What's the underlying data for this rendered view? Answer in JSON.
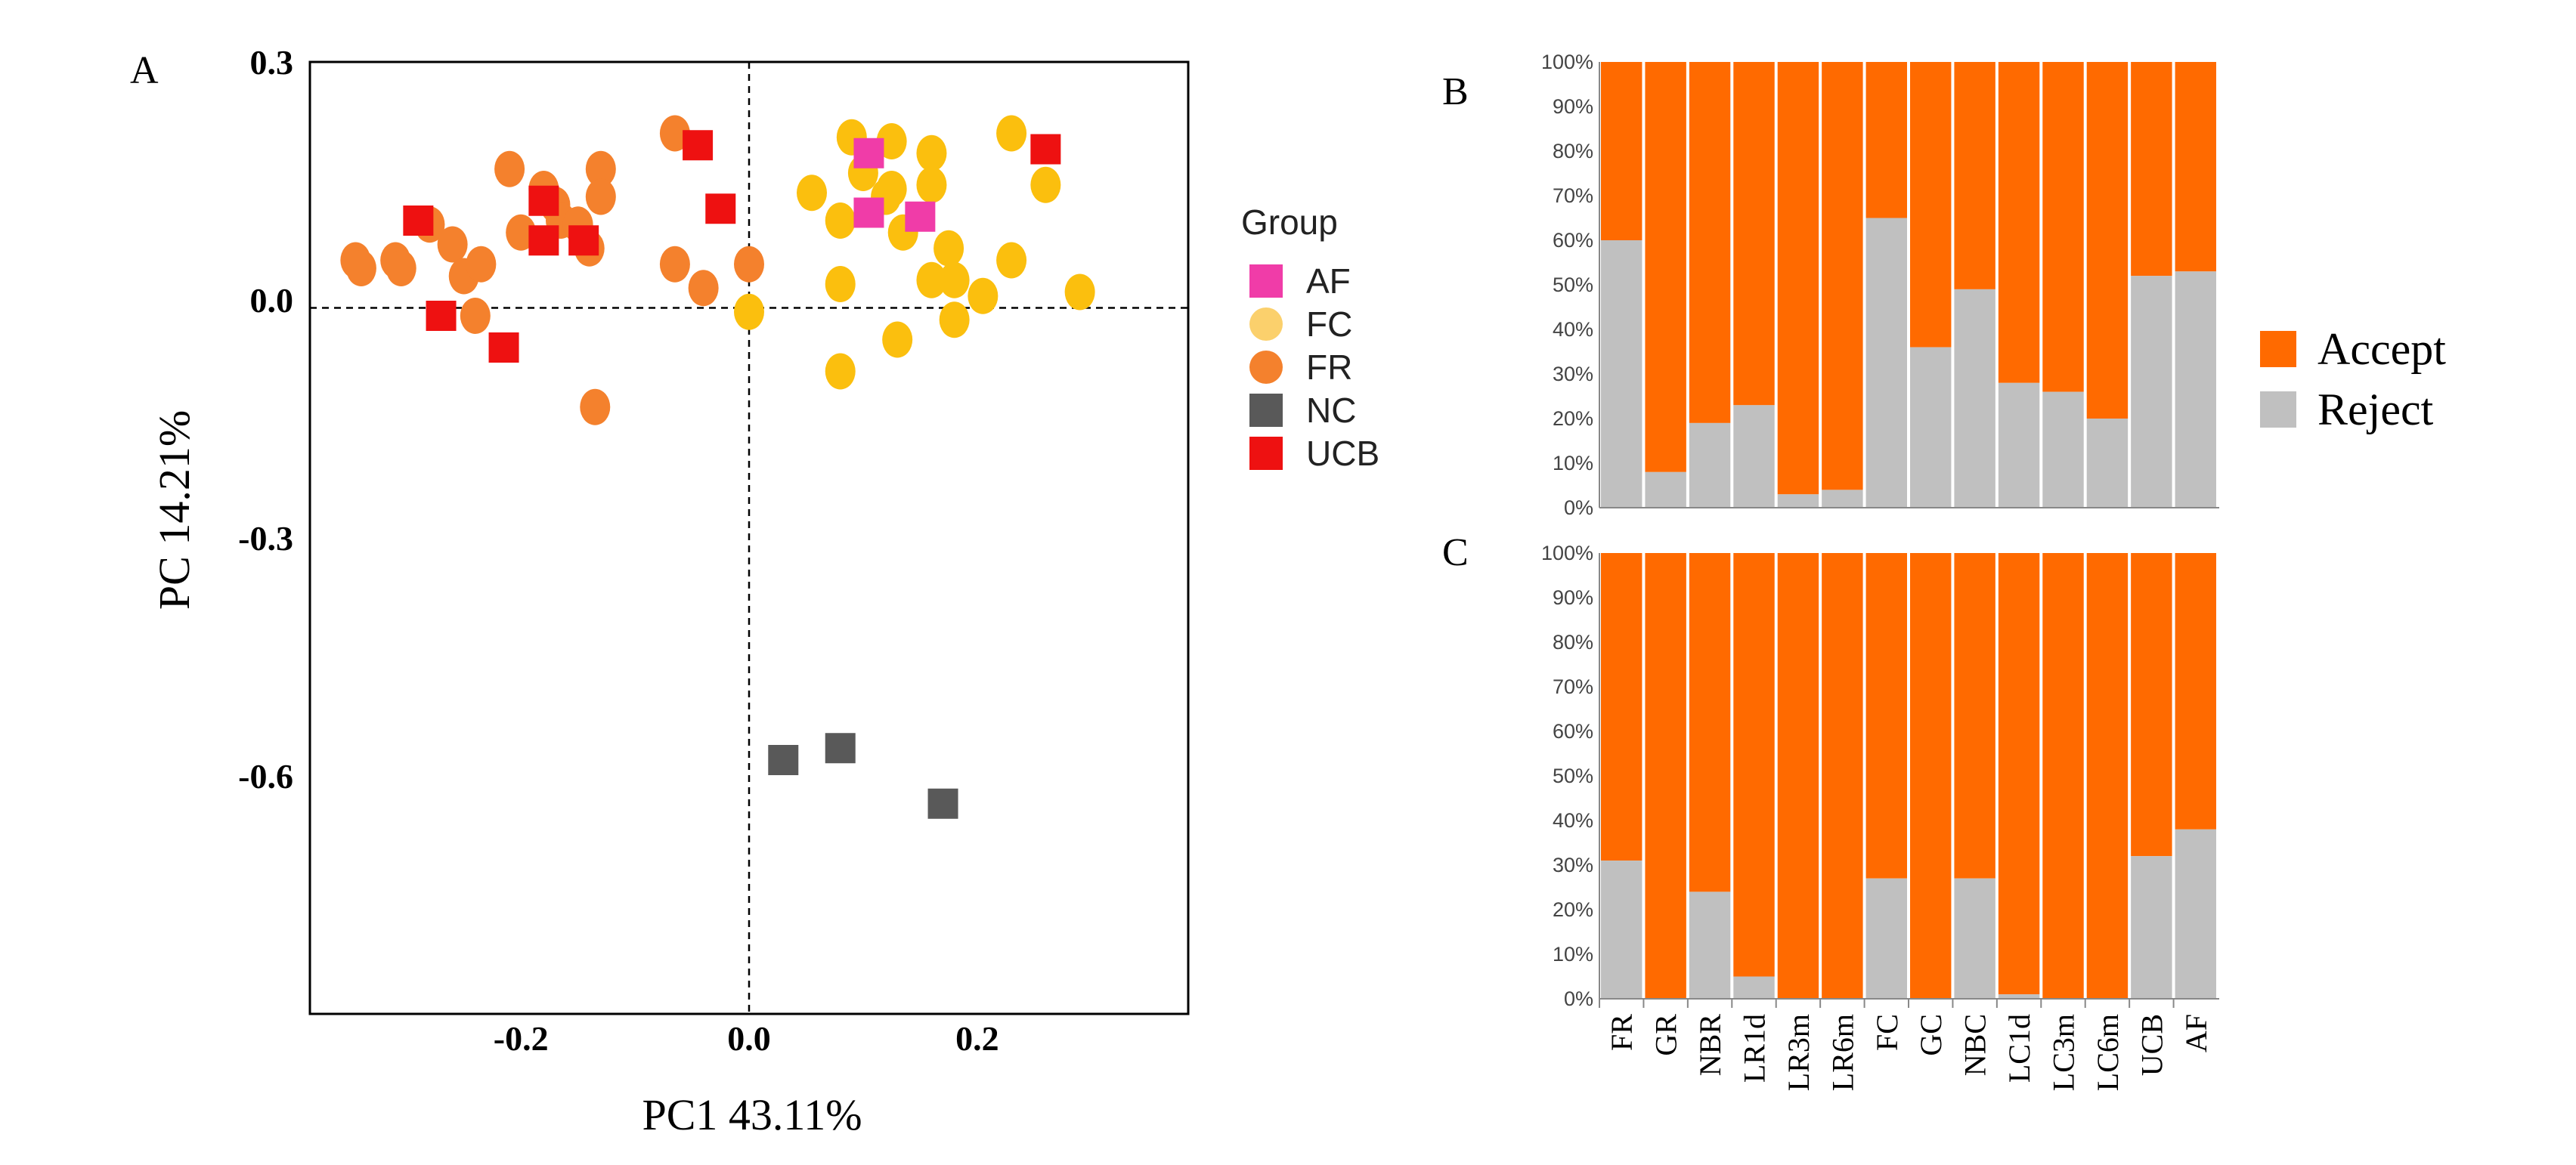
{
  "chart_data": [
    {
      "panel": "A",
      "type": "scatter",
      "xlabel": "PC1 43.11%",
      "ylabel": "PC 14.21%",
      "xlim": [
        -0.385,
        0.385
      ],
      "ylim": [
        -0.9,
        0.3
      ],
      "xticks": [
        -0.2,
        0.0,
        0.2
      ],
      "xtick_labels": [
        "-0.2",
        "0.0",
        "0.2"
      ],
      "yticks": [
        0.3,
        0.0,
        -0.3,
        -0.6
      ],
      "ytick_labels": [
        "0.3",
        "0.0",
        "-0.3",
        "-0.6"
      ],
      "reference_lines": {
        "x": 0.0,
        "y": -0.01,
        "style": "dashed"
      },
      "legend": {
        "title": "Group",
        "position": "right",
        "entries": [
          {
            "label": "AF",
            "marker": "square",
            "color": "#f03ca8"
          },
          {
            "label": "FC",
            "marker": "circle",
            "color": "#fbd06c"
          },
          {
            "label": "FR",
            "marker": "circle",
            "color": "#f4812d"
          },
          {
            "label": "NC",
            "marker": "square",
            "color": "#595959"
          },
          {
            "label": "UCB",
            "marker": "square",
            "color": "#ee1111"
          }
        ]
      },
      "series": [
        {
          "name": "FR",
          "marker": "ellipse",
          "color": "#f4812d",
          "points": [
            [
              -0.345,
              0.05
            ],
            [
              -0.34,
              0.04
            ],
            [
              -0.31,
              0.05
            ],
            [
              -0.305,
              0.04
            ],
            [
              -0.28,
              0.095
            ],
            [
              -0.26,
              0.07
            ],
            [
              -0.25,
              0.03
            ],
            [
              -0.235,
              0.045
            ],
            [
              -0.24,
              -0.02
            ],
            [
              -0.21,
              0.165
            ],
            [
              -0.2,
              0.085
            ],
            [
              -0.18,
              0.14
            ],
            [
              -0.17,
              0.12
            ],
            [
              -0.165,
              0.1
            ],
            [
              -0.15,
              0.095
            ],
            [
              -0.14,
              0.065
            ],
            [
              -0.13,
              0.165
            ],
            [
              -0.13,
              0.13
            ],
            [
              -0.135,
              -0.135
            ],
            [
              -0.065,
              0.21
            ],
            [
              -0.065,
              0.045
            ],
            [
              -0.04,
              0.015
            ],
            [
              0.0,
              0.045
            ]
          ]
        },
        {
          "name": "FC",
          "marker": "ellipse",
          "color": "#fbbf0e",
          "points": [
            [
              0.0,
              -0.015
            ],
            [
              0.055,
              0.135
            ],
            [
              0.08,
              0.1
            ],
            [
              0.08,
              0.02
            ],
            [
              0.08,
              -0.09
            ],
            [
              0.09,
              0.205
            ],
            [
              0.1,
              0.16
            ],
            [
              0.12,
              0.13
            ],
            [
              0.125,
              0.2
            ],
            [
              0.125,
              0.14
            ],
            [
              0.135,
              0.085
            ],
            [
              0.13,
              -0.05
            ],
            [
              0.16,
              0.185
            ],
            [
              0.16,
              0.145
            ],
            [
              0.16,
              0.025
            ],
            [
              0.175,
              0.065
            ],
            [
              0.18,
              0.025
            ],
            [
              0.18,
              -0.025
            ],
            [
              0.205,
              0.005
            ],
            [
              0.23,
              0.21
            ],
            [
              0.23,
              0.05
            ],
            [
              0.26,
              0.145
            ],
            [
              0.29,
              0.01
            ]
          ]
        },
        {
          "name": "UCB",
          "marker": "square",
          "color": "#ee1111",
          "points": [
            [
              -0.29,
              0.1
            ],
            [
              -0.27,
              -0.02
            ],
            [
              -0.215,
              -0.06
            ],
            [
              -0.18,
              0.125
            ],
            [
              -0.18,
              0.075
            ],
            [
              -0.145,
              0.075
            ],
            [
              -0.045,
              0.195
            ],
            [
              -0.025,
              0.115
            ],
            [
              0.26,
              0.19
            ]
          ]
        },
        {
          "name": "AF",
          "marker": "square",
          "color": "#f03ca8",
          "points": [
            [
              0.105,
              0.185
            ],
            [
              0.105,
              0.11
            ],
            [
              0.15,
              0.105
            ]
          ]
        },
        {
          "name": "NC",
          "marker": "square",
          "color": "#595959",
          "points": [
            [
              0.03,
              -0.58
            ],
            [
              0.08,
              -0.565
            ],
            [
              0.17,
              -0.635
            ]
          ]
        }
      ]
    },
    {
      "panel": "B",
      "type": "bar",
      "stacked": true,
      "normalized": true,
      "categories": [
        "FR",
        "GR",
        "NBR",
        "LR1d",
        "LR3m",
        "LR6m",
        "FC",
        "GC",
        "NBC",
        "LC1d",
        "LC3m",
        "LC6m",
        "UCB",
        "AF"
      ],
      "series": [
        {
          "name": "Reject",
          "color": "#c0c0c0",
          "values": [
            60,
            8,
            19,
            23,
            3,
            4,
            65,
            36,
            49,
            28,
            26,
            20,
            52,
            53
          ]
        },
        {
          "name": "Accept",
          "color": "#ff6a00",
          "values": [
            40,
            92,
            81,
            77,
            97,
            96,
            35,
            64,
            51,
            72,
            74,
            80,
            48,
            47
          ]
        }
      ],
      "ylim": [
        0,
        100
      ],
      "ytick_labels": [
        "0%",
        "10%",
        "20%",
        "30%",
        "40%",
        "50%",
        "60%",
        "70%",
        "80%",
        "90%",
        "100%"
      ]
    },
    {
      "panel": "C",
      "type": "bar",
      "stacked": true,
      "normalized": true,
      "categories": [
        "FR",
        "GR",
        "NBR",
        "LR1d",
        "LR3m",
        "LR6m",
        "FC",
        "GC",
        "NBC",
        "LC1d",
        "LC3m",
        "LC6m",
        "UCB",
        "AF"
      ],
      "series": [
        {
          "name": "Reject",
          "color": "#c0c0c0",
          "values": [
            31,
            0,
            24,
            5,
            0,
            0,
            27,
            0,
            27,
            1,
            0,
            0,
            32,
            38
          ]
        },
        {
          "name": "Accept",
          "color": "#ff6a00",
          "values": [
            69,
            100,
            76,
            95,
            100,
            100,
            73,
            100,
            73,
            99,
            100,
            100,
            68,
            62
          ]
        }
      ],
      "ylim": [
        0,
        100
      ],
      "ytick_labels": [
        "0%",
        "10%",
        "20%",
        "30%",
        "40%",
        "50%",
        "60%",
        "70%",
        "80%",
        "90%",
        "100%"
      ],
      "xtick_labels": [
        "FR",
        "GR",
        "NBR",
        "LR1d",
        "LR3m",
        "LR6m",
        "FC",
        "GC",
        "NBC",
        "LC1d",
        "LC3m",
        "LC6m",
        "UCB",
        "AF"
      ]
    }
  ],
  "bar_legend": {
    "entries": [
      {
        "label": "Accept",
        "color": "#ff6a00"
      },
      {
        "label": "Reject",
        "color": "#c0c0c0"
      }
    ]
  }
}
